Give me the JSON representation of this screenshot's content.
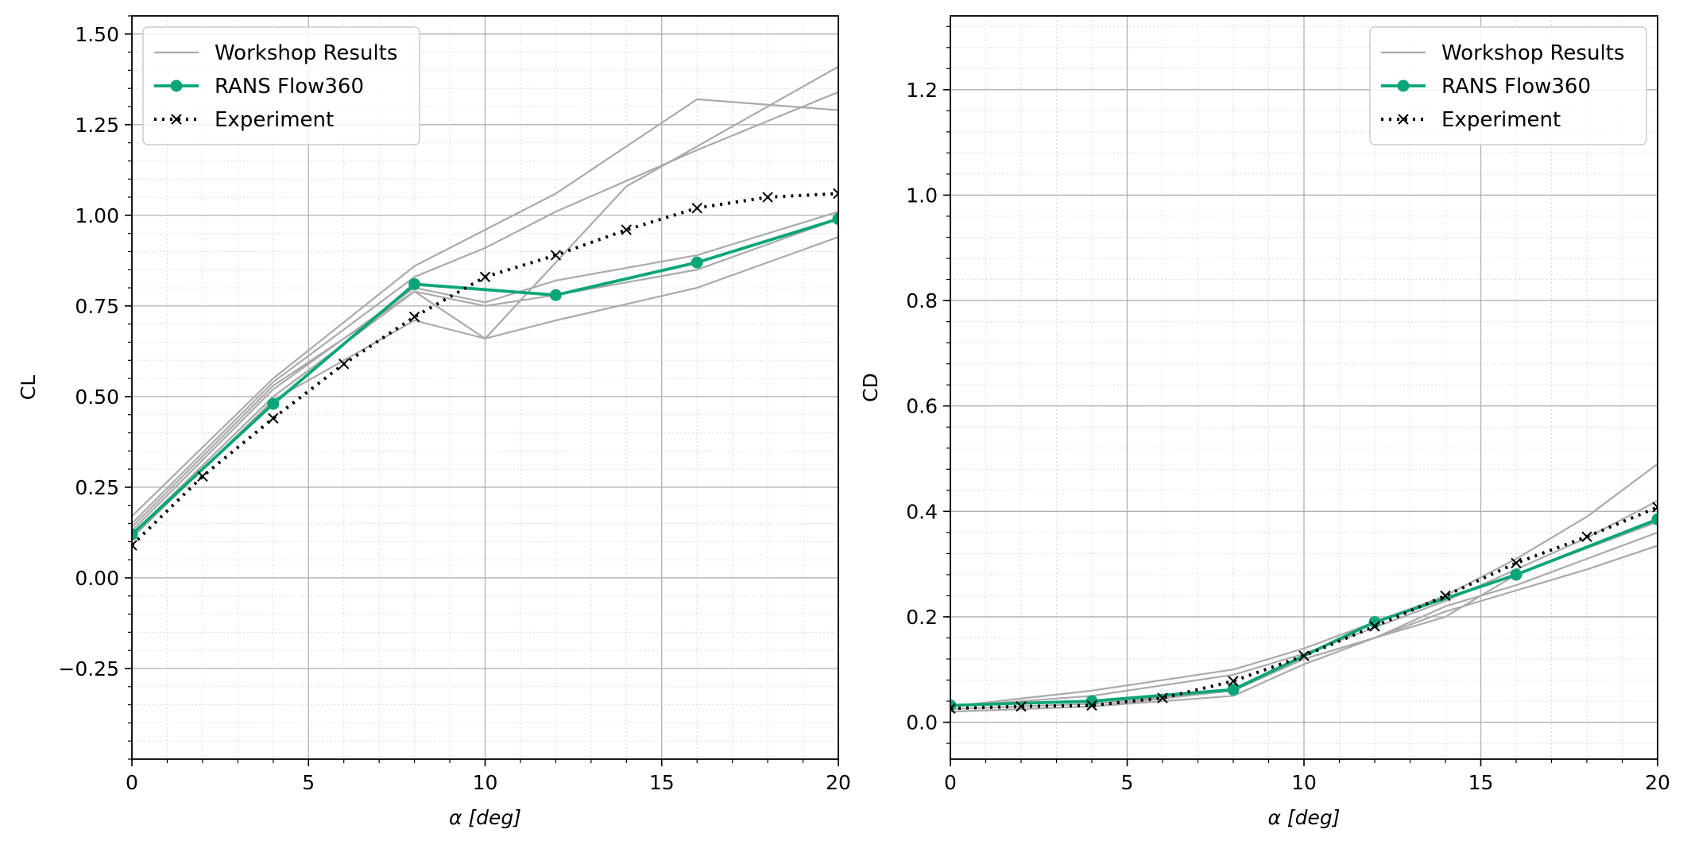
{
  "chart_data": [
    {
      "type": "line",
      "xlabel": "α [deg]",
      "ylabel": "CL",
      "xlim": [
        0,
        20
      ],
      "ylim": [
        -0.5,
        1.55
      ],
      "xticks": [
        0,
        5,
        10,
        15,
        20
      ],
      "xtick_labels": [
        "0",
        "5",
        "10",
        "15",
        "20"
      ],
      "yticks": [
        -0.25,
        0.0,
        0.25,
        0.5,
        0.75,
        1.0,
        1.25,
        1.5
      ],
      "ytick_labels": [
        "−0.25",
        "0.00",
        "0.25",
        "0.50",
        "0.75",
        "1.00",
        "1.25",
        "1.50"
      ],
      "grid": true,
      "minor_grid": true,
      "legend_position": "top-left",
      "legend": [
        "Workshop Results",
        "RANS Flow360",
        "Experiment"
      ],
      "colors": {
        "workshop": "#aaaaaa",
        "rans": "#0aa57a",
        "experiment": "#000000"
      },
      "workshop_series": [
        {
          "x": [
            0,
            4,
            8,
            10,
            12,
            16,
            20
          ],
          "y": [
            0.17,
            0.55,
            0.86,
            0.96,
            1.06,
            1.32,
            1.29
          ]
        },
        {
          "x": [
            0,
            4,
            8,
            10,
            12,
            16,
            20
          ],
          "y": [
            0.15,
            0.54,
            0.83,
            0.91,
            1.01,
            1.18,
            1.34
          ]
        },
        {
          "x": [
            0,
            4,
            8,
            10,
            14,
            20
          ],
          "y": [
            0.14,
            0.53,
            0.79,
            0.66,
            1.08,
            1.41
          ]
        },
        {
          "x": [
            0,
            4,
            8,
            10,
            12,
            16,
            20
          ],
          "y": [
            0.13,
            0.52,
            0.8,
            0.76,
            0.82,
            0.89,
            1.01
          ]
        },
        {
          "x": [
            0,
            4,
            8,
            10,
            12,
            16,
            20
          ],
          "y": [
            0.12,
            0.5,
            0.79,
            0.75,
            0.78,
            0.85,
            0.99
          ]
        },
        {
          "x": [
            0,
            4,
            8,
            10,
            12,
            16,
            18,
            20
          ],
          "y": [
            0.11,
            0.49,
            0.71,
            0.66,
            0.71,
            0.8,
            0.87,
            0.94
          ]
        }
      ],
      "rans": {
        "x": [
          0,
          4,
          8,
          12,
          16,
          20
        ],
        "y": [
          0.12,
          0.48,
          0.81,
          0.78,
          0.87,
          0.99
        ]
      },
      "experiment": {
        "x": [
          0,
          2,
          4,
          6,
          8,
          10,
          12,
          14,
          16,
          18,
          20
        ],
        "y": [
          0.09,
          0.28,
          0.44,
          0.59,
          0.72,
          0.83,
          0.89,
          0.96,
          1.02,
          1.05,
          1.06
        ]
      }
    },
    {
      "type": "line",
      "xlabel": "α [deg]",
      "ylabel": "CD",
      "xlim": [
        0,
        20
      ],
      "ylim": [
        -0.07,
        1.34
      ],
      "xticks": [
        0,
        5,
        10,
        15,
        20
      ],
      "xtick_labels": [
        "0",
        "5",
        "10",
        "15",
        "20"
      ],
      "yticks": [
        0.0,
        0.2,
        0.4,
        0.6,
        0.8,
        1.0,
        1.2
      ],
      "ytick_labels": [
        "0.0",
        "0.2",
        "0.4",
        "0.6",
        "0.8",
        "1.0",
        "1.2"
      ],
      "grid": true,
      "minor_grid": true,
      "legend_position": "top-right",
      "legend": [
        "Workshop Results",
        "RANS Flow360",
        "Experiment"
      ],
      "colors": {
        "workshop": "#aaaaaa",
        "rans": "#0aa57a",
        "experiment": "#000000"
      },
      "workshop_series": [
        {
          "x": [
            0,
            2,
            4,
            6,
            8,
            10,
            12,
            14,
            16,
            18,
            20
          ],
          "y": [
            0.03,
            0.045,
            0.06,
            0.08,
            0.1,
            0.14,
            0.19,
            0.24,
            0.31,
            0.39,
            0.49
          ]
        },
        {
          "x": [
            0,
            2,
            4,
            6,
            8,
            10,
            12,
            14,
            16,
            18,
            20
          ],
          "y": [
            0.03,
            0.04,
            0.05,
            0.07,
            0.09,
            0.13,
            0.18,
            0.23,
            0.29,
            0.35,
            0.42
          ]
        },
        {
          "x": [
            0,
            4,
            8,
            10,
            12,
            14,
            16,
            18,
            20
          ],
          "y": [
            0.025,
            0.035,
            0.06,
            0.12,
            0.16,
            0.2,
            0.28,
            0.33,
            0.38
          ]
        },
        {
          "x": [
            0,
            4,
            8,
            10,
            12,
            14,
            16,
            18,
            20
          ],
          "y": [
            0.02,
            0.03,
            0.06,
            0.12,
            0.16,
            0.22,
            0.26,
            0.31,
            0.36
          ]
        },
        {
          "x": [
            0,
            4,
            8,
            10,
            12,
            14,
            16,
            18,
            20
          ],
          "y": [
            0.02,
            0.03,
            0.05,
            0.11,
            0.16,
            0.21,
            0.25,
            0.29,
            0.335
          ]
        }
      ],
      "rans": {
        "x": [
          0,
          4,
          8,
          12,
          16,
          20
        ],
        "y": [
          0.032,
          0.04,
          0.062,
          0.19,
          0.28,
          0.385
        ]
      },
      "experiment": {
        "x": [
          0,
          2,
          4,
          6,
          8,
          10,
          12,
          14,
          16,
          18,
          20
        ],
        "y": [
          0.026,
          0.03,
          0.032,
          0.046,
          0.078,
          0.126,
          0.182,
          0.24,
          0.302,
          0.352,
          0.408
        ]
      }
    }
  ]
}
